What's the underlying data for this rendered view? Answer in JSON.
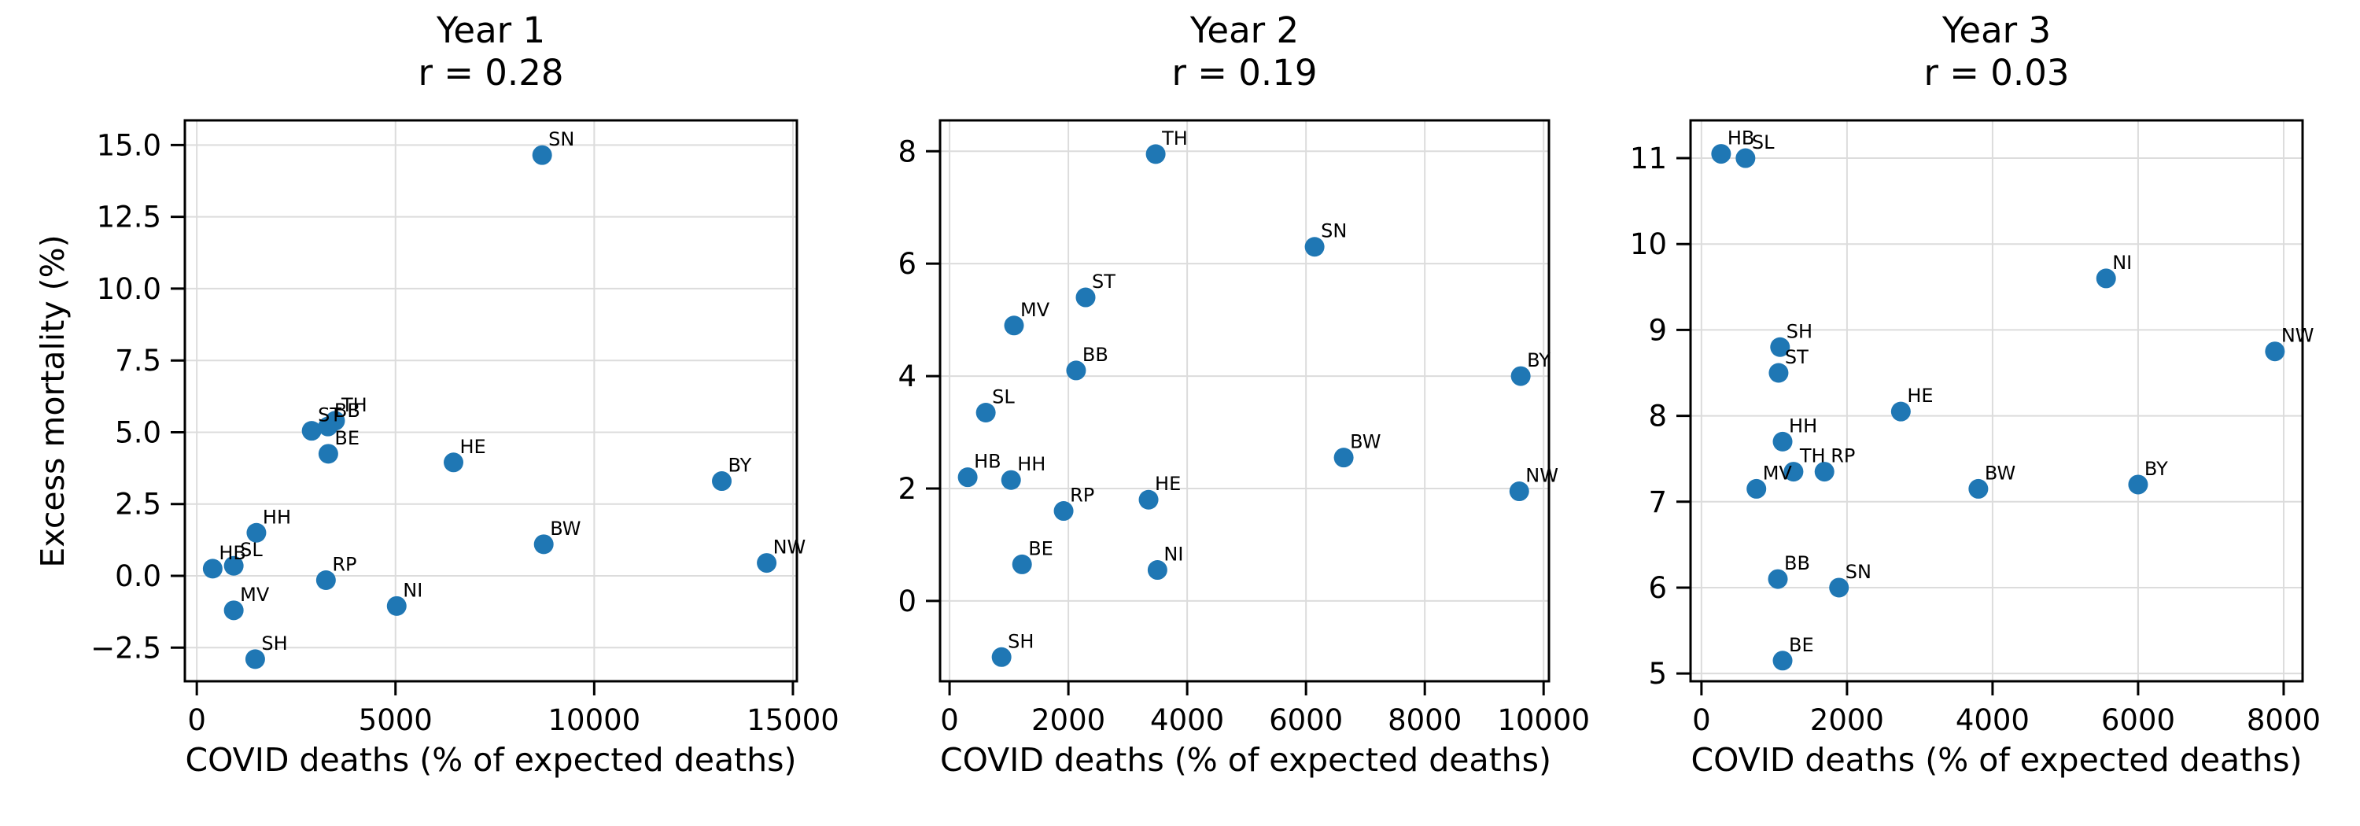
{
  "figure": {
    "y_axis_label": "Excess mortality (%)",
    "point_color": "#1f77b4",
    "grid_color": "#dcdcdc",
    "spine_color": "#000000",
    "text_color": "#000000",
    "background_color": "#ffffff"
  },
  "chart_data": [
    {
      "type": "scatter",
      "title": "Year 1",
      "subtitle": "r = 0.28",
      "xlabel": "COVID deaths (% of expected deaths)",
      "ylabel": "Excess mortality (%)",
      "grid": true,
      "legend": false,
      "xlim": [
        -300,
        15100
      ],
      "ylim": [
        -3.67,
        15.86
      ],
      "xticks": [
        0,
        5000,
        10000,
        15000
      ],
      "xtick_labels": [
        "0",
        "5000",
        "10000",
        "15000"
      ],
      "yticks": [
        -2.5,
        0,
        2.5,
        5,
        7.5,
        10,
        12.5,
        15
      ],
      "ytick_labels": [
        "−2.5",
        "0.0",
        "2.5",
        "5.0",
        "7.5",
        "10.0",
        "12.5",
        "15.0"
      ],
      "points": [
        {
          "label": "HB",
          "x": 400,
          "y": 0.25
        },
        {
          "label": "SL",
          "x": 930,
          "y": 0.35
        },
        {
          "label": "MV",
          "x": 930,
          "y": -1.2
        },
        {
          "label": "SH",
          "x": 1470,
          "y": -2.9
        },
        {
          "label": "HH",
          "x": 1500,
          "y": 1.5
        },
        {
          "label": "ST",
          "x": 2890,
          "y": 5.05
        },
        {
          "label": "RP",
          "x": 3250,
          "y": -0.15
        },
        {
          "label": "BB",
          "x": 3300,
          "y": 5.2
        },
        {
          "label": "BE",
          "x": 3310,
          "y": 4.25
        },
        {
          "label": "TH",
          "x": 3480,
          "y": 5.4
        },
        {
          "label": "NI",
          "x": 5030,
          "y": -1.05
        },
        {
          "label": "HE",
          "x": 6460,
          "y": 3.95
        },
        {
          "label": "SN",
          "x": 8690,
          "y": 14.65
        },
        {
          "label": "BW",
          "x": 8730,
          "y": 1.1
        },
        {
          "label": "BY",
          "x": 13210,
          "y": 3.3
        },
        {
          "label": "NW",
          "x": 14340,
          "y": 0.45
        }
      ]
    },
    {
      "type": "scatter",
      "title": "Year 2",
      "subtitle": "r = 0.19",
      "xlabel": "COVID deaths (% of expected deaths)",
      "ylabel": "Excess mortality (%)",
      "grid": true,
      "legend": false,
      "xlim": [
        -160,
        10090
      ],
      "ylim": [
        -1.43,
        8.55
      ],
      "xticks": [
        0,
        2000,
        4000,
        6000,
        8000,
        10000
      ],
      "xtick_labels": [
        "0",
        "2000",
        "4000",
        "6000",
        "8000",
        "10000"
      ],
      "yticks": [
        0,
        2,
        4,
        6,
        8
      ],
      "ytick_labels": [
        "0",
        "2",
        "4",
        "6",
        "8"
      ],
      "points": [
        {
          "label": "HB",
          "x": 305,
          "y": 2.2
        },
        {
          "label": "SL",
          "x": 610,
          "y": 3.35
        },
        {
          "label": "SH",
          "x": 875,
          "y": -1.0
        },
        {
          "label": "HH",
          "x": 1035,
          "y": 2.15
        },
        {
          "label": "MV",
          "x": 1085,
          "y": 4.9
        },
        {
          "label": "BE",
          "x": 1220,
          "y": 0.65
        },
        {
          "label": "RP",
          "x": 1920,
          "y": 1.6
        },
        {
          "label": "BB",
          "x": 2130,
          "y": 4.1
        },
        {
          "label": "ST",
          "x": 2290,
          "y": 5.4
        },
        {
          "label": "HE",
          "x": 3350,
          "y": 1.8
        },
        {
          "label": "TH",
          "x": 3470,
          "y": 7.95
        },
        {
          "label": "NI",
          "x": 3500,
          "y": 0.55
        },
        {
          "label": "SN",
          "x": 6145,
          "y": 6.3
        },
        {
          "label": "BW",
          "x": 6635,
          "y": 2.55
        },
        {
          "label": "NW",
          "x": 9590,
          "y": 1.95
        },
        {
          "label": "BY",
          "x": 9615,
          "y": 4.0
        }
      ]
    },
    {
      "type": "scatter",
      "title": "Year 3",
      "subtitle": "r = 0.03",
      "xlabel": "COVID deaths (% of expected deaths)",
      "ylabel": "Excess mortality (%)",
      "grid": true,
      "legend": false,
      "xlim": [
        -150,
        8260
      ],
      "ylim": [
        4.91,
        11.44
      ],
      "xticks": [
        0,
        2000,
        4000,
        6000,
        8000
      ],
      "xtick_labels": [
        "0",
        "2000",
        "4000",
        "6000",
        "8000"
      ],
      "yticks": [
        5,
        6,
        7,
        8,
        9,
        10,
        11
      ],
      "ytick_labels": [
        "5",
        "6",
        "7",
        "8",
        "9",
        "10",
        "11"
      ],
      "points": [
        {
          "label": "HB",
          "x": 270,
          "y": 11.05
        },
        {
          "label": "SL",
          "x": 605,
          "y": 11.0
        },
        {
          "label": "MV",
          "x": 755,
          "y": 7.15
        },
        {
          "label": "BB",
          "x": 1050,
          "y": 6.1
        },
        {
          "label": "ST",
          "x": 1060,
          "y": 8.5
        },
        {
          "label": "SH",
          "x": 1080,
          "y": 8.8
        },
        {
          "label": "HH",
          "x": 1115,
          "y": 7.7
        },
        {
          "label": "BE",
          "x": 1115,
          "y": 5.15
        },
        {
          "label": "TH",
          "x": 1265,
          "y": 7.35
        },
        {
          "label": "RP",
          "x": 1690,
          "y": 7.35
        },
        {
          "label": "SN",
          "x": 1890,
          "y": 6.0
        },
        {
          "label": "HE",
          "x": 2740,
          "y": 8.05
        },
        {
          "label": "BW",
          "x": 3805,
          "y": 7.15
        },
        {
          "label": "NI",
          "x": 5560,
          "y": 9.6
        },
        {
          "label": "BY",
          "x": 6000,
          "y": 7.2
        },
        {
          "label": "NW",
          "x": 7880,
          "y": 8.75
        }
      ]
    }
  ]
}
